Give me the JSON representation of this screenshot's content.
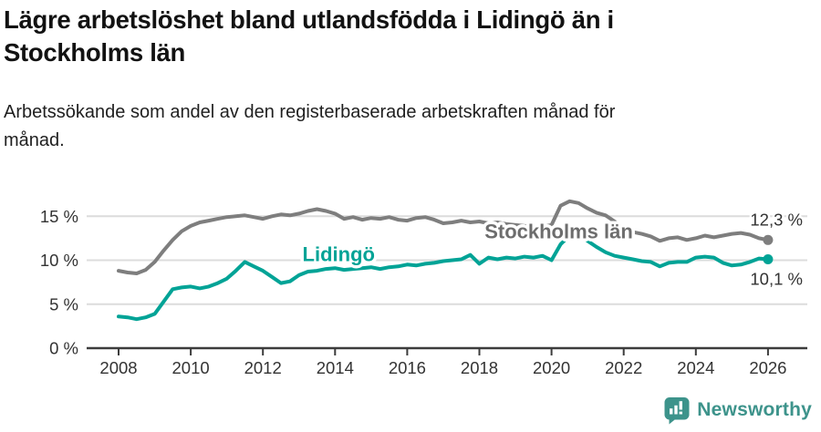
{
  "title": "Lägre arbetslöshet bland utlandsfödda i Lidingö än i Stockholms län",
  "subtitle": "Arbetssökande som andel av den registerbaserade arbetskraften månad för månad.",
  "branding": {
    "name": "Newsworthy",
    "icon": "newsworthy-bubble-chart-icon",
    "color": "#3d938b"
  },
  "chart_data": {
    "type": "line",
    "title": "Lägre arbetslöshet bland utlandsfödda i Lidingö än i Stockholms län",
    "subtitle": "Arbetssökande som andel av den registerbaserade arbetskraften månad för månad.",
    "unit": "percent",
    "grid": "horizontal",
    "x_start": 2008,
    "x_step": 0.25,
    "x_tick_values": [
      2008,
      2010,
      2012,
      2014,
      2016,
      2018,
      2020,
      2022,
      2024,
      2026
    ],
    "x_tick_labels": [
      "2008",
      "2010",
      "2012",
      "2014",
      "2016",
      "2018",
      "2020",
      "2022",
      "2024",
      "2026"
    ],
    "y_ticks": [
      {
        "value": 0,
        "label": "0 %"
      },
      {
        "value": 5,
        "label": "5 %"
      },
      {
        "value": 10,
        "label": "10 %"
      },
      {
        "value": 15,
        "label": "15 %"
      }
    ],
    "ylim": [
      0,
      17.5
    ],
    "xlim": [
      2007.2,
      2027
    ],
    "series": [
      {
        "name": "Stockholms län",
        "color": "#7e7e7e",
        "label_color": "#6d6d6d",
        "end_label": "12,3 %",
        "end_value": 12.3,
        "end_label_side": "above",
        "label_anchor": {
          "x": 2020.2,
          "y": 13.2
        },
        "values": [
          8.8,
          8.6,
          8.5,
          8.9,
          9.8,
          11.1,
          12.3,
          13.3,
          13.9,
          14.3,
          14.5,
          14.7,
          14.9,
          15.0,
          15.1,
          14.9,
          14.7,
          15.0,
          15.2,
          15.1,
          15.3,
          15.6,
          15.8,
          15.6,
          15.3,
          14.7,
          14.9,
          14.6,
          14.8,
          14.7,
          14.9,
          14.6,
          14.5,
          14.8,
          14.9,
          14.6,
          14.2,
          14.3,
          14.5,
          14.3,
          14.4,
          14.2,
          14.3,
          14.1,
          14.0,
          13.9,
          13.8,
          13.8,
          14.0,
          16.2,
          16.7,
          16.5,
          15.9,
          15.4,
          15.1,
          14.4,
          13.6,
          13.2,
          13.0,
          12.7,
          12.2,
          12.5,
          12.6,
          12.3,
          12.5,
          12.8,
          12.6,
          12.8,
          13.0,
          13.1,
          12.9,
          12.5,
          12.3
        ]
      },
      {
        "name": "Lidingö",
        "color": "#00a396",
        "label_color": "#00a396",
        "end_label": "10,1 %",
        "end_value": 10.1,
        "end_label_side": "below",
        "label_anchor": {
          "x": 2014.1,
          "y": 10.6
        },
        "values": [
          3.6,
          3.5,
          3.3,
          3.5,
          3.9,
          5.3,
          6.7,
          6.9,
          7.0,
          6.8,
          7.0,
          7.4,
          7.9,
          8.8,
          9.8,
          9.3,
          8.8,
          8.1,
          7.4,
          7.6,
          8.3,
          8.7,
          8.8,
          9.0,
          9.1,
          8.9,
          9.0,
          9.1,
          9.2,
          9.0,
          9.2,
          9.3,
          9.5,
          9.4,
          9.6,
          9.7,
          9.9,
          10.0,
          10.1,
          10.6,
          9.6,
          10.3,
          10.1,
          10.3,
          10.2,
          10.4,
          10.3,
          10.5,
          10.0,
          11.8,
          12.8,
          13.2,
          12.2,
          11.5,
          10.9,
          10.5,
          10.3,
          10.1,
          9.9,
          9.8,
          9.3,
          9.7,
          9.8,
          9.8,
          10.3,
          10.4,
          10.3,
          9.7,
          9.4,
          9.5,
          9.8,
          10.2,
          10.1
        ]
      }
    ]
  }
}
